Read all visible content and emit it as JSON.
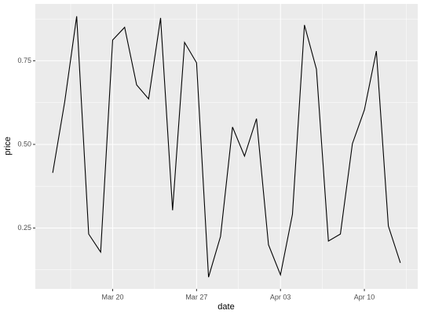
{
  "chart_data": {
    "type": "line",
    "x_label": "date",
    "y_label": "price",
    "x": [
      "Mar 15",
      "Mar 16",
      "Mar 17",
      "Mar 18",
      "Mar 19",
      "Mar 20",
      "Mar 21",
      "Mar 22",
      "Mar 23",
      "Mar 24",
      "Mar 25",
      "Mar 26",
      "Mar 27",
      "Mar 28",
      "Mar 29",
      "Mar 30",
      "Mar 31",
      "Apr 01",
      "Apr 02",
      "Apr 03",
      "Apr 04",
      "Apr 05",
      "Apr 06",
      "Apr 07",
      "Apr 08",
      "Apr 09",
      "Apr 10",
      "Apr 11",
      "Apr 12",
      "Apr 13"
    ],
    "values": [
      0.415,
      0.627,
      0.883,
      0.232,
      0.178,
      0.812,
      0.85,
      0.678,
      0.636,
      0.878,
      0.303,
      0.805,
      0.744,
      0.103,
      0.225,
      0.552,
      0.465,
      0.577,
      0.2,
      0.11,
      0.291,
      0.857,
      0.725,
      0.211,
      0.232,
      0.502,
      0.603,
      0.779,
      0.256,
      0.146
    ],
    "color": "#000000",
    "xticks": [
      "Mar 20",
      "Mar 27",
      "Apr 03",
      "Apr 10"
    ],
    "ylim": [
      0.068,
      0.92
    ],
    "yticks": [
      0.25,
      {
        "value": 0.5,
        "label": "0.50"
      },
      0.75
    ],
    "grid": true
  }
}
